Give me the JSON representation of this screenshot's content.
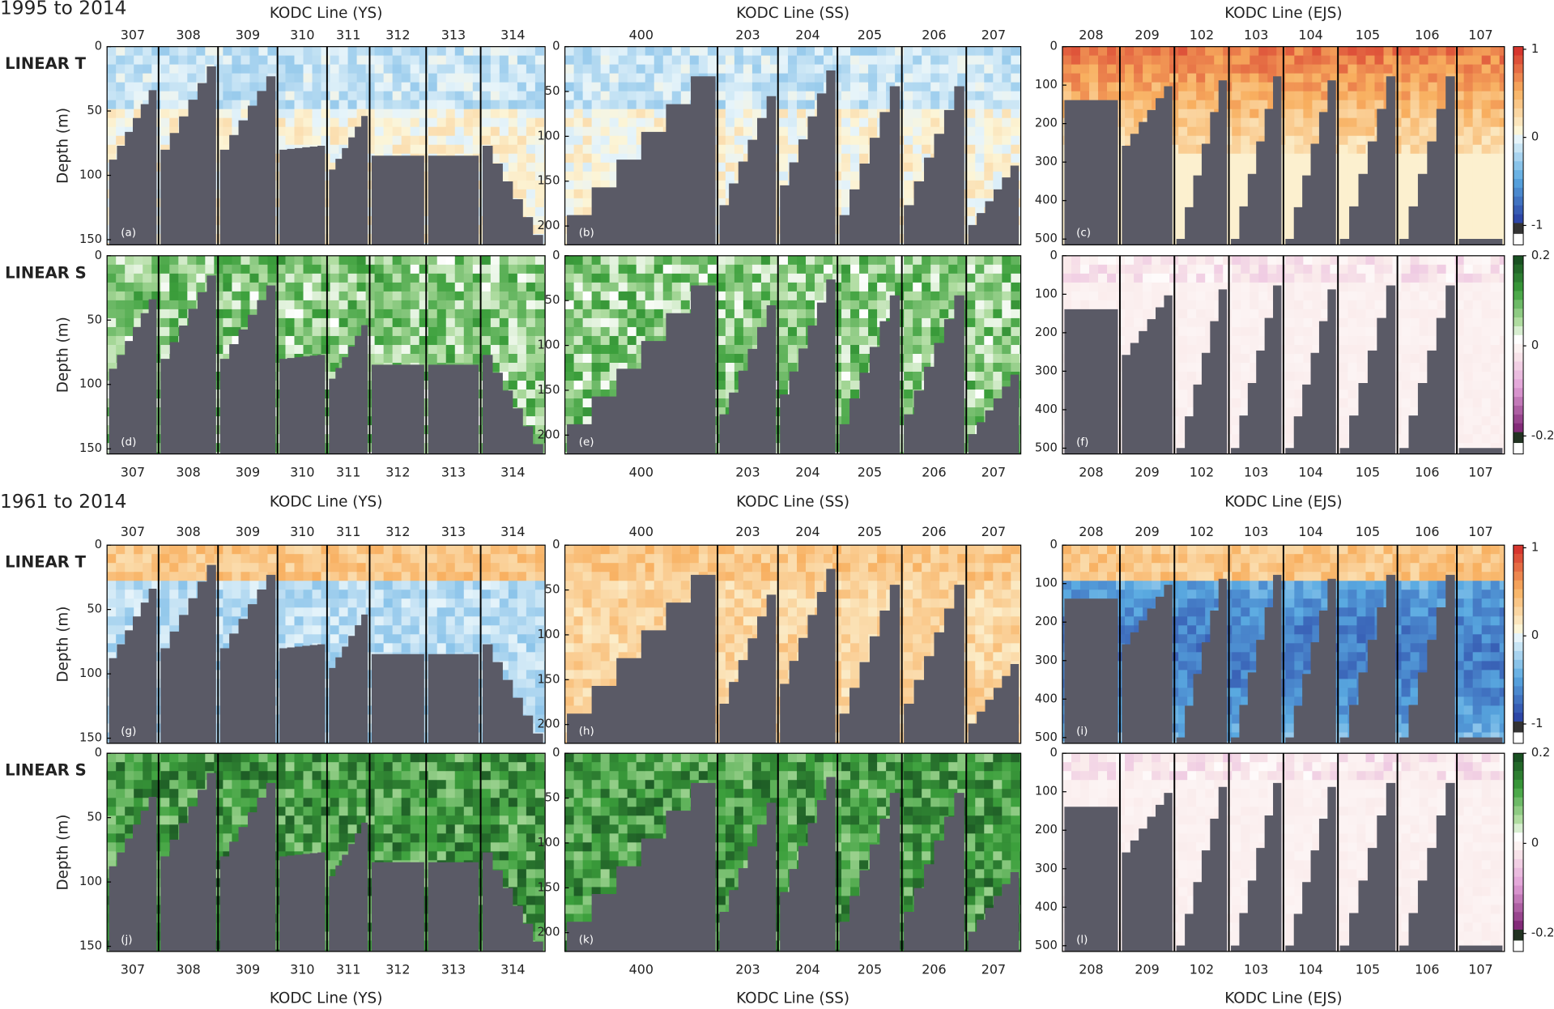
{
  "figure": {
    "y_label": "Depth (m)",
    "periods": [
      {
        "title": "1995 to 2014",
        "rows": [
          {
            "label": "LINEAR T",
            "panels": [
              "(a)",
              "(b)",
              "(c)"
            ]
          },
          {
            "label": "LINEAR S",
            "panels": [
              "(d)",
              "(e)",
              "(f)"
            ]
          }
        ]
      },
      {
        "title": "1961 to 2014",
        "rows": [
          {
            "label": "LINEAR T",
            "panels": [
              "(g)",
              "(h)",
              "(i)"
            ]
          },
          {
            "label": "LINEAR S",
            "panels": [
              "(j)",
              "(k)",
              "(l)"
            ]
          }
        ]
      }
    ],
    "regions": [
      {
        "name": "KODC Line (YS)",
        "lines": [
          "307",
          "308",
          "309",
          "310",
          "311",
          "312",
          "313",
          "314"
        ],
        "ylim": [
          0,
          154
        ],
        "yticks": [
          0,
          50,
          100,
          150
        ]
      },
      {
        "name": "KODC Line (SS)",
        "lines": [
          "400",
          "203",
          "204",
          "205",
          "206",
          "207"
        ],
        "ylim": [
          0,
          221
        ],
        "yticks": [
          0,
          50,
          100,
          150,
          200
        ]
      },
      {
        "name": "KODC Line (EJS)",
        "lines": [
          "208",
          "209",
          "102",
          "103",
          "104",
          "105",
          "106",
          "107"
        ],
        "ylim": [
          0,
          515
        ],
        "yticks": [
          0,
          100,
          200,
          300,
          400,
          500
        ]
      }
    ],
    "colorbars": [
      {
        "variable": "T",
        "ylim": [
          -1.22,
          1.03
        ],
        "yticks": [
          1,
          0,
          -1
        ]
      },
      {
        "variable": "S",
        "ylim": [
          -0.24,
          0.2
        ],
        "yticks": [
          0.2,
          0,
          -0.2
        ]
      }
    ]
  }
}
